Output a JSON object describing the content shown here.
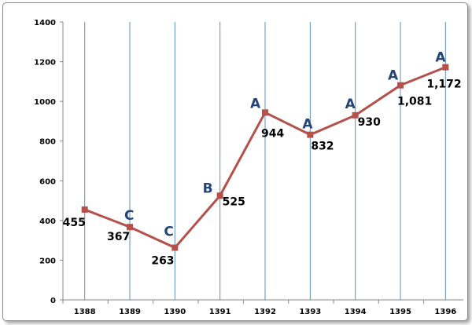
{
  "chart_data": {
    "type": "line",
    "title": "",
    "xlabel": "",
    "ylabel": "",
    "categories": [
      "1388",
      "1389",
      "1390",
      "1391",
      "1392",
      "1393",
      "1394",
      "1395",
      "1396"
    ],
    "series": [
      {
        "values": [
          455,
          367,
          263,
          525,
          944,
          832,
          930,
          1081,
          1172
        ],
        "value_labels": [
          "455",
          "367",
          "263",
          "525",
          "944",
          "832",
          "930",
          "1,081",
          "1,172"
        ],
        "point_labels": [
          "",
          "C",
          "C",
          "B",
          "A",
          "A",
          "A",
          "A",
          "A"
        ]
      }
    ],
    "ylim": [
      0,
      1400
    ],
    "yticks": [
      0,
      200,
      400,
      600,
      800,
      1000,
      1200,
      1400
    ],
    "grid": "vertical lines at categories",
    "legend": "none",
    "colors": {
      "line": "#b5504b",
      "marker": "#b5504b",
      "grade_label": "#24457a",
      "grid": "#5f8fb5",
      "axis": "#888888"
    }
  }
}
